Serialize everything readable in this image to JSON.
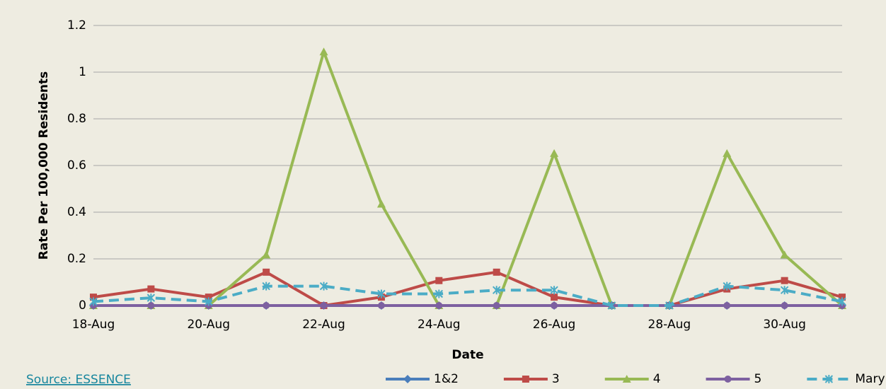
{
  "chart_data": {
    "type": "line",
    "x_label": "Date",
    "y_label": "Rate Per 100,000 Residents",
    "source": "Source: ESSENCE",
    "categories": [
      "18-Aug",
      null,
      "20-Aug",
      null,
      "22-Aug",
      null,
      "24-Aug",
      null,
      "26-Aug",
      null,
      "28-Aug",
      null,
      "30-Aug",
      null
    ],
    "series": [
      {
        "name": "1&2",
        "color": "#4a7ebb",
        "marker": "diamond",
        "values": [
          0,
          0,
          0,
          0,
          0,
          0,
          0,
          0,
          0,
          0,
          0,
          0,
          0,
          0
        ]
      },
      {
        "name": "3",
        "color": "#be4b48",
        "marker": "square",
        "values": [
          0.036,
          0.071,
          0.036,
          0.143,
          0,
          0.036,
          0.107,
          0.143,
          0.036,
          0,
          0,
          0.071,
          0.107,
          0.036
        ]
      },
      {
        "name": "4",
        "color": "#98b954",
        "marker": "triangle",
        "values": [
          0,
          0,
          0,
          0.217,
          1.087,
          0.435,
          0,
          0,
          0.652,
          0,
          0,
          0.652,
          0.217,
          0
        ]
      },
      {
        "name": "5",
        "color": "#7d60a0",
        "marker": "circle",
        "values": [
          0,
          0,
          0,
          0,
          0,
          0,
          0,
          0,
          0,
          0,
          0,
          0,
          0,
          0
        ]
      },
      {
        "name": "Maryland",
        "color": "#4bacc6",
        "marker": "star",
        "dashed": true,
        "values": [
          0.017,
          0.033,
          0.017,
          0.083,
          0.083,
          0.05,
          0.05,
          0.066,
          0.066,
          0,
          0,
          0.083,
          0.066,
          0.017
        ]
      }
    ],
    "ylim": [
      0,
      1.2
    ],
    "yticks": [
      0,
      0.2,
      0.4,
      0.6,
      0.8,
      1,
      1.2
    ],
    "grid": true,
    "legend": "bottom"
  }
}
